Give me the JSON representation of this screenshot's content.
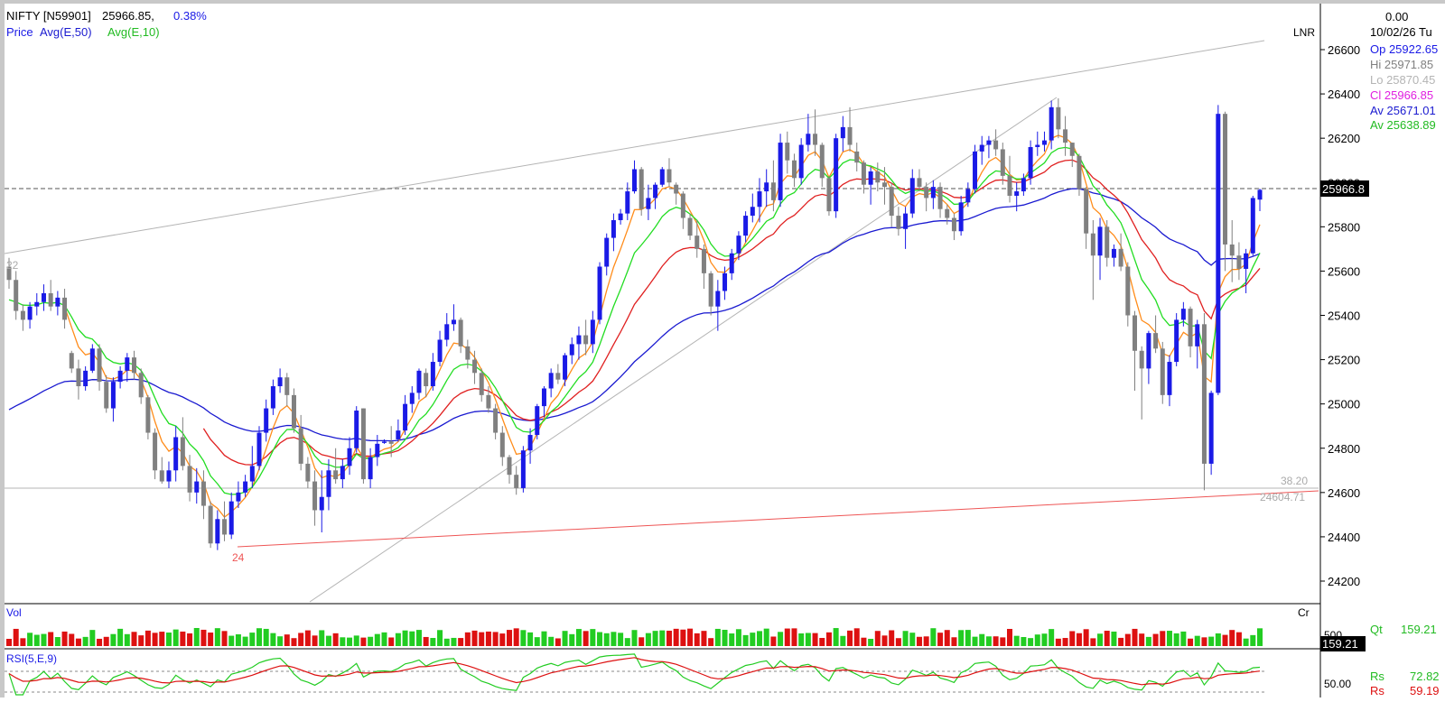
{
  "header": {
    "symbol": "NIFTY [N59901]",
    "last": "25966.85,",
    "change_pct": "0.38%",
    "legend_price": "Price",
    "legend_ema50": "Avg(E,50)",
    "legend_ema10": "Avg(E,10)"
  },
  "scale_mode": "LNR",
  "info_panel": {
    "value": "0.00",
    "date": "10/02/26 Tu",
    "open": "Op 25922.65",
    "high": "Hi  25971.85",
    "low": "Lo  25870.45",
    "close": "Cl  25966.85",
    "avg50": "Av 25671.01",
    "avg10": "Av 25638.89"
  },
  "annotations": {
    "swing_high": "22",
    "swing_low": "24",
    "level_label_pct": "38.20",
    "level_label_value": "24604.71",
    "last_price_tag": "25966.8"
  },
  "volume_panel": {
    "label": "Vol",
    "unit": "Cr",
    "axis_tick": "500",
    "qt_label": "Qt",
    "qt_value": "159.21",
    "value_tag": "159.21"
  },
  "rsi_panel": {
    "label": "RSI(5,E,9)",
    "axis_tick": "50.00",
    "rs1_label": "Rs",
    "rs1_value": "72.82",
    "rs2_label": "Rs",
    "rs2_value": "59.19"
  },
  "colors": {
    "up": "#1a1ae6",
    "down": "#808080",
    "ema50": "#1a1ad0",
    "ema10": "#22dd22",
    "orange_avg": "#ff8c1a",
    "red_avg": "#e02020",
    "support_trend": "#ee5555",
    "volume_up": "#22cc22",
    "volume_down": "#dd1111",
    "rsi_fast": "#22cc22",
    "rsi_slow": "#dd1111"
  },
  "chart_data": {
    "type": "candlestick",
    "y_ticks": [
      24200,
      24400,
      24600,
      24800,
      25000,
      25200,
      25400,
      25600,
      25800,
      26000,
      26200,
      26400,
      26600
    ],
    "y_range": [
      24050,
      26780
    ],
    "last_price": 25966.85,
    "horizontal_level": 24604.71,
    "candles": [
      [
        25620,
        25660,
        25520,
        25560
      ],
      [
        25560,
        25600,
        25380,
        25420
      ],
      [
        25420,
        25450,
        25330,
        25380
      ],
      [
        25380,
        25460,
        25340,
        25440
      ],
      [
        25440,
        25500,
        25400,
        25460
      ],
      [
        25460,
        25540,
        25420,
        25500
      ],
      [
        25500,
        25560,
        25420,
        25440
      ],
      [
        25440,
        25510,
        25400,
        25480
      ],
      [
        25480,
        25520,
        25340,
        25380
      ],
      [
        25230,
        25240,
        25140,
        25160
      ],
      [
        25160,
        25200,
        25020,
        25080
      ],
      [
        25080,
        25170,
        25060,
        25150
      ],
      [
        25150,
        25270,
        25140,
        25250
      ],
      [
        25250,
        25270,
        25060,
        25100
      ],
      [
        25100,
        25130,
        24960,
        24980
      ],
      [
        24980,
        25120,
        24920,
        25100
      ],
      [
        25100,
        25170,
        25070,
        25150
      ],
      [
        25150,
        25230,
        25100,
        25210
      ],
      [
        25210,
        25240,
        25110,
        25140
      ],
      [
        25140,
        25160,
        25000,
        25030
      ],
      [
        25030,
        25040,
        24840,
        24870
      ],
      [
        24870,
        24890,
        24660,
        24700
      ],
      [
        24700,
        24760,
        24640,
        24650
      ],
      [
        24650,
        24740,
        24620,
        24700
      ],
      [
        24700,
        24900,
        24650,
        24850
      ],
      [
        24850,
        24940,
        24700,
        24720
      ],
      [
        24720,
        24770,
        24560,
        24600
      ],
      [
        24600,
        24710,
        24550,
        24650
      ],
      [
        24650,
        24700,
        24480,
        24540
      ],
      [
        24540,
        24560,
        24350,
        24370
      ],
      [
        24370,
        24520,
        24340,
        24480
      ],
      [
        24480,
        24560,
        24380,
        24410
      ],
      [
        24410,
        24600,
        24390,
        24560
      ],
      [
        24560,
        24650,
        24530,
        24600
      ],
      [
        24600,
        24680,
        24580,
        24650
      ],
      [
        24650,
        24810,
        24620,
        24720
      ],
      [
        24720,
        24900,
        24700,
        24870
      ],
      [
        24870,
        25020,
        24830,
        24980
      ],
      [
        24980,
        25110,
        24950,
        25080
      ],
      [
        25080,
        25160,
        25050,
        25120
      ],
      [
        25120,
        25140,
        24990,
        25040
      ],
      [
        25040,
        25070,
        24870,
        24890
      ],
      [
        24890,
        24950,
        24700,
        24730
      ],
      [
        24730,
        24760,
        24620,
        24650
      ],
      [
        24650,
        24700,
        24450,
        24520
      ],
      [
        24520,
        24700,
        24420,
        24580
      ],
      [
        24580,
        24750,
        24520,
        24700
      ],
      [
        24700,
        24800,
        24640,
        24660
      ],
      [
        24660,
        24750,
        24620,
        24720
      ],
      [
        24720,
        24850,
        24680,
        24800
      ],
      [
        24800,
        24990,
        24780,
        24970
      ],
      [
        24980,
        24980,
        24640,
        24660
      ],
      [
        24660,
        24800,
        24620,
        24760
      ],
      [
        24760,
        24860,
        24720,
        24820
      ],
      [
        24830,
        24840,
        24820,
        24830
      ],
      [
        24830,
        24900,
        24760,
        24820
      ],
      [
        24840,
        24930,
        24830,
        24880
      ],
      [
        24880,
        25040,
        24860,
        25000
      ],
      [
        25000,
        25080,
        24960,
        25050
      ],
      [
        25050,
        25160,
        25020,
        25150
      ],
      [
        25140,
        25160,
        25030,
        25080
      ],
      [
        25080,
        25230,
        25060,
        25190
      ],
      [
        25190,
        25330,
        25170,
        25290
      ],
      [
        25290,
        25410,
        25260,
        25360
      ],
      [
        25360,
        25450,
        25330,
        25380
      ],
      [
        25380,
        25390,
        25230,
        25260
      ],
      [
        25260,
        25290,
        25160,
        25200
      ],
      [
        25200,
        25240,
        25090,
        25140
      ],
      [
        25140,
        25160,
        25010,
        25040
      ],
      [
        25040,
        25080,
        24960,
        24980
      ],
      [
        24980,
        25000,
        24840,
        24870
      ],
      [
        24870,
        24900,
        24720,
        24760
      ],
      [
        24760,
        24770,
        24640,
        24680
      ],
      [
        24680,
        24720,
        24590,
        24620
      ],
      [
        24620,
        24810,
        24600,
        24790
      ],
      [
        24790,
        24890,
        24730,
        24860
      ],
      [
        24860,
        25000,
        24840,
        24990
      ],
      [
        24990,
        25080,
        24940,
        25070
      ],
      [
        25070,
        25160,
        25030,
        25140
      ],
      [
        25140,
        25180,
        25090,
        25110
      ],
      [
        25110,
        25230,
        25080,
        25220
      ],
      [
        25220,
        25300,
        25180,
        25270
      ],
      [
        25270,
        25350,
        25200,
        25310
      ],
      [
        25310,
        25380,
        25220,
        25270
      ],
      [
        25270,
        25420,
        25230,
        25380
      ],
      [
        25380,
        25640,
        25360,
        25620
      ],
      [
        25620,
        25770,
        25580,
        25750
      ],
      [
        25750,
        25860,
        25690,
        25830
      ],
      [
        25830,
        25880,
        25810,
        25860
      ],
      [
        25860,
        26000,
        25830,
        25960
      ],
      [
        25960,
        26100,
        25950,
        26060
      ],
      [
        26060,
        26070,
        25850,
        25880
      ],
      [
        25880,
        25990,
        25830,
        25930
      ],
      [
        25930,
        26000,
        25880,
        25990
      ],
      [
        25990,
        26070,
        25980,
        26060
      ],
      [
        26060,
        26110,
        25980,
        26000
      ],
      [
        25990,
        26000,
        25900,
        25950
      ],
      [
        25950,
        25960,
        25790,
        25840
      ],
      [
        25840,
        25860,
        25740,
        25760
      ],
      [
        25760,
        25830,
        25660,
        25700
      ],
      [
        25700,
        25720,
        25520,
        25590
      ],
      [
        25590,
        25600,
        25400,
        25440
      ],
      [
        25440,
        25560,
        25330,
        25510
      ],
      [
        25510,
        25620,
        25470,
        25590
      ],
      [
        25590,
        25700,
        25560,
        25680
      ],
      [
        25680,
        25780,
        25650,
        25760
      ],
      [
        25760,
        25870,
        25730,
        25850
      ],
      [
        25850,
        25950,
        25820,
        25890
      ],
      [
        25890,
        26020,
        25820,
        25960
      ],
      [
        25960,
        26060,
        25890,
        26000
      ],
      [
        26000,
        26100,
        25870,
        25920
      ],
      [
        25920,
        26220,
        25890,
        26180
      ],
      [
        26180,
        26230,
        26040,
        26100
      ],
      [
        26100,
        26130,
        25980,
        26020
      ],
      [
        26020,
        26200,
        25990,
        26170
      ],
      [
        26170,
        26310,
        26140,
        26220
      ],
      [
        26220,
        26330,
        26120,
        26170
      ],
      [
        26170,
        26180,
        25980,
        26020
      ],
      [
        26020,
        26030,
        25850,
        25870
      ],
      [
        25870,
        26220,
        25840,
        26200
      ],
      [
        26200,
        26300,
        26140,
        26250
      ],
      [
        26250,
        26340,
        26140,
        26170
      ],
      [
        26140,
        26180,
        26050,
        26090
      ],
      [
        26090,
        26100,
        25950,
        25990
      ],
      [
        25990,
        26070,
        25900,
        26050
      ],
      [
        26050,
        26090,
        25960,
        26000
      ],
      [
        26000,
        26070,
        25900,
        25980
      ],
      [
        25980,
        26000,
        25800,
        25850
      ],
      [
        25850,
        25890,
        25760,
        25790
      ],
      [
        25790,
        25890,
        25700,
        25860
      ],
      [
        25860,
        26060,
        25840,
        26020
      ],
      [
        26020,
        26060,
        25960,
        25980
      ],
      [
        25980,
        26000,
        25870,
        25930
      ],
      [
        25930,
        26010,
        25880,
        25980
      ],
      [
        25980,
        26000,
        25840,
        25880
      ],
      [
        25880,
        25900,
        25810,
        25840
      ],
      [
        25840,
        25860,
        25740,
        25780
      ],
      [
        25780,
        25940,
        25760,
        25910
      ],
      [
        25910,
        26000,
        25890,
        25970
      ],
      [
        25970,
        26170,
        25950,
        26140
      ],
      [
        26140,
        26210,
        26080,
        26170
      ],
      [
        26170,
        26210,
        26110,
        26190
      ],
      [
        26190,
        26240,
        26120,
        26150
      ],
      [
        26150,
        26180,
        25990,
        26030
      ],
      [
        26030,
        26120,
        25910,
        25940
      ],
      [
        25940,
        26000,
        25870,
        25960
      ],
      [
        25960,
        26040,
        25940,
        26020
      ],
      [
        26020,
        26190,
        25990,
        26160
      ],
      [
        26160,
        26230,
        26120,
        26170
      ],
      [
        26170,
        26230,
        26140,
        26190
      ],
      [
        26190,
        26370,
        26150,
        26340
      ],
      [
        26340,
        26380,
        26200,
        26240
      ],
      [
        26240,
        26300,
        26120,
        26180
      ],
      [
        26180,
        26180,
        26070,
        26120
      ],
      [
        26120,
        26130,
        25940,
        25970
      ],
      [
        25970,
        25980,
        25700,
        25770
      ],
      [
        25770,
        25830,
        25470,
        25670
      ],
      [
        25670,
        25840,
        25560,
        25800
      ],
      [
        25800,
        25830,
        25620,
        25660
      ],
      [
        25660,
        25720,
        25620,
        25700
      ],
      [
        25700,
        25770,
        25600,
        25620
      ],
      [
        25620,
        25640,
        25350,
        25400
      ],
      [
        25400,
        25420,
        25060,
        25240
      ],
      [
        25240,
        25260,
        24930,
        25160
      ],
      [
        25160,
        25330,
        25090,
        25320
      ],
      [
        25320,
        25400,
        25230,
        25250
      ],
      [
        25250,
        25280,
        25000,
        25040
      ],
      [
        25040,
        25220,
        24990,
        25190
      ],
      [
        25190,
        25410,
        25170,
        25380
      ],
      [
        25380,
        25460,
        25350,
        25430
      ],
      [
        25430,
        25440,
        25210,
        25260
      ],
      [
        25260,
        25380,
        25160,
        25360
      ],
      [
        25360,
        25410,
        24610,
        24730
      ],
      [
        24730,
        25060,
        24680,
        25050
      ],
      [
        25050,
        26350,
        25040,
        26310
      ],
      [
        26310,
        26320,
        25600,
        25720
      ],
      [
        25720,
        25830,
        25550,
        25670
      ],
      [
        25670,
        25730,
        25560,
        25610
      ],
      [
        25610,
        25700,
        25500,
        25680
      ],
      [
        25680,
        25940,
        25670,
        25930
      ],
      [
        25922.65,
        25971.85,
        25870.45,
        25966.85
      ]
    ]
  }
}
